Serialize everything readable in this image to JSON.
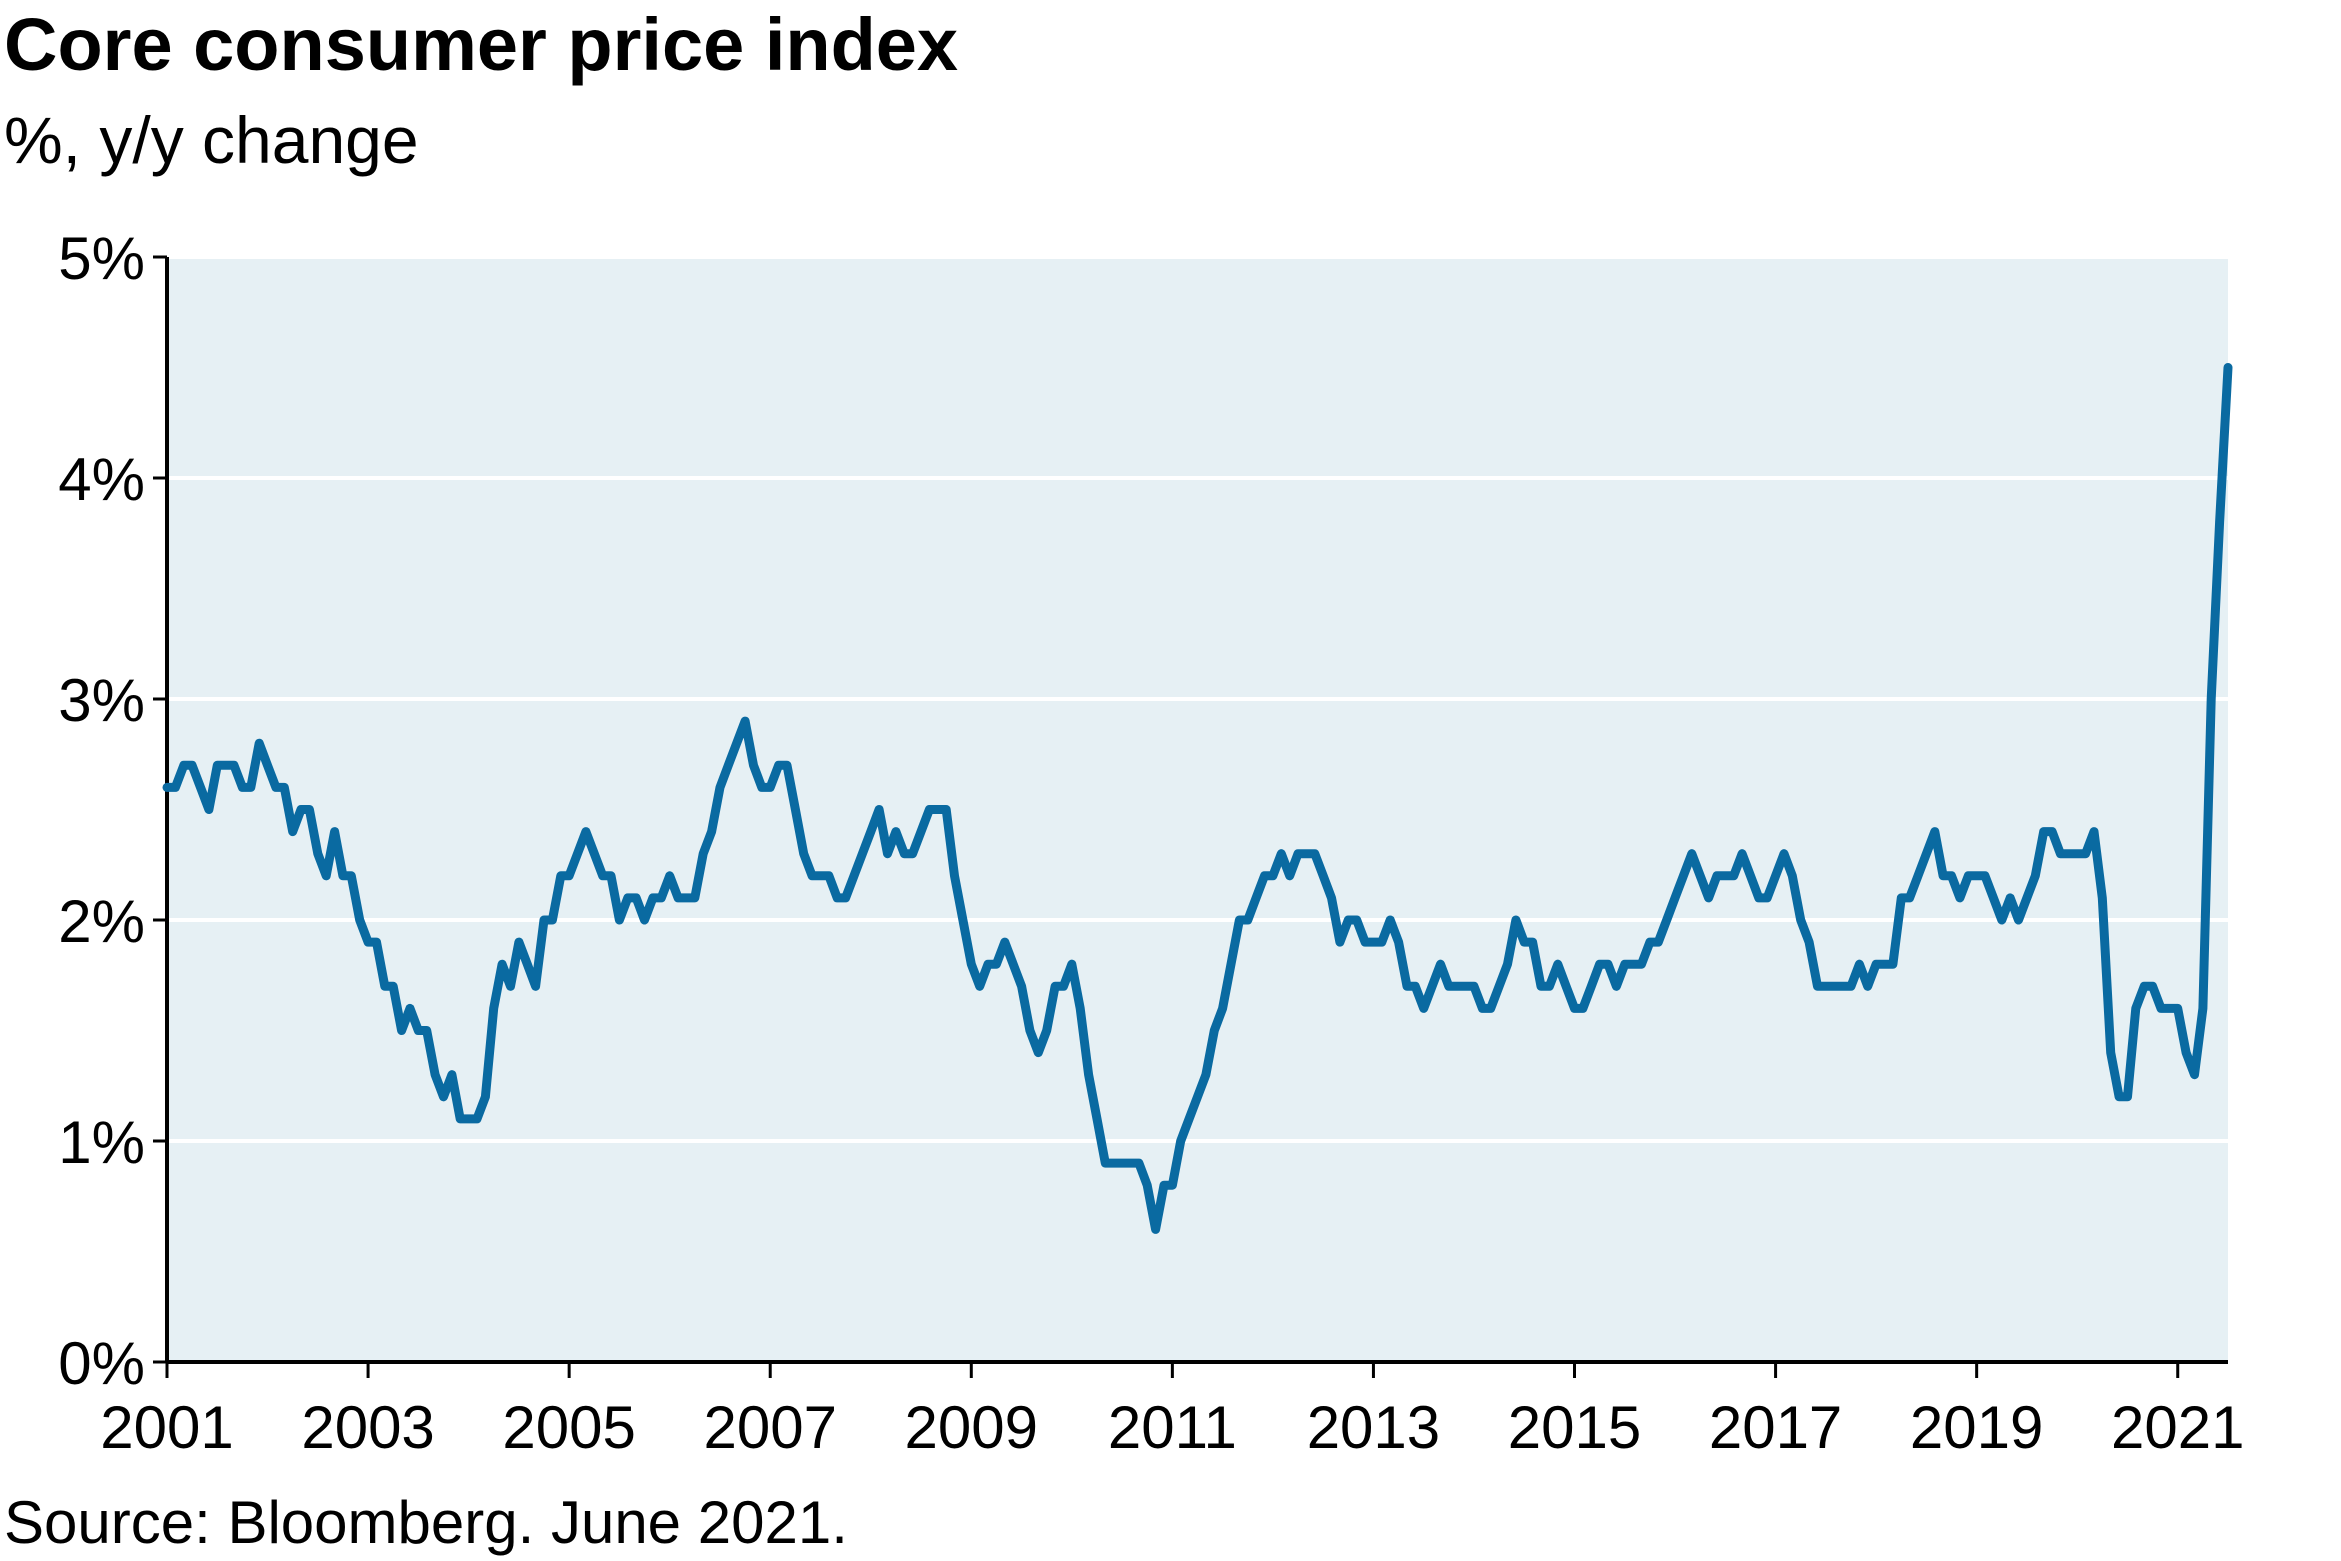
{
  "chart_data": {
    "type": "line",
    "title": "Core consumer price index",
    "subtitle": "%, y/y change",
    "source": "Source: Bloomberg. June 2021.",
    "ylim": [
      0,
      5
    ],
    "y_ticks": [
      0,
      1,
      2,
      3,
      4,
      5
    ],
    "y_tick_labels": [
      "0%",
      "1%",
      "2%",
      "3%",
      "4%",
      "5%"
    ],
    "x_ticks": [
      2001,
      2003,
      2005,
      2007,
      2009,
      2011,
      2013,
      2015,
      2017,
      2019,
      2021
    ],
    "x_tick_labels": [
      "2001",
      "2003",
      "2005",
      "2007",
      "2009",
      "2011",
      "2013",
      "2015",
      "2017",
      "2019",
      "2021"
    ],
    "xlim": [
      2001.0,
      2021.5
    ],
    "grid": "horizontal",
    "colors": {
      "line": "#0a6aa1",
      "plot_background": "#e6f0f4",
      "grid": "#ffffff",
      "axis": "#000000"
    },
    "series": [
      {
        "x_start": "2001-01",
        "frequency": "monthly",
        "values": [
          2.6,
          2.6,
          2.7,
          2.7,
          2.6,
          2.5,
          2.7,
          2.7,
          2.7,
          2.6,
          2.6,
          2.8,
          2.7,
          2.6,
          2.6,
          2.4,
          2.5,
          2.5,
          2.3,
          2.2,
          2.4,
          2.2,
          2.2,
          2.0,
          1.9,
          1.9,
          1.7,
          1.7,
          1.5,
          1.6,
          1.5,
          1.5,
          1.3,
          1.2,
          1.3,
          1.1,
          1.1,
          1.1,
          1.2,
          1.6,
          1.8,
          1.7,
          1.9,
          1.8,
          1.7,
          2.0,
          2.0,
          2.2,
          2.2,
          2.3,
          2.4,
          2.3,
          2.2,
          2.2,
          2.0,
          2.1,
          2.1,
          2.0,
          2.1,
          2.1,
          2.2,
          2.1,
          2.1,
          2.1,
          2.3,
          2.4,
          2.6,
          2.7,
          2.8,
          2.9,
          2.7,
          2.6,
          2.6,
          2.7,
          2.7,
          2.5,
          2.3,
          2.2,
          2.2,
          2.2,
          2.1,
          2.1,
          2.2,
          2.3,
          2.4,
          2.5,
          2.3,
          2.4,
          2.3,
          2.3,
          2.4,
          2.5,
          2.5,
          2.5,
          2.2,
          2.0,
          1.8,
          1.7,
          1.8,
          1.8,
          1.9,
          1.8,
          1.7,
          1.5,
          1.4,
          1.5,
          1.7,
          1.7,
          1.8,
          1.6,
          1.3,
          1.1,
          0.9,
          0.9,
          0.9,
          0.9,
          0.9,
          0.8,
          0.6,
          0.8,
          0.8,
          1.0,
          1.1,
          1.2,
          1.3,
          1.5,
          1.6,
          1.8,
          2.0,
          2.0,
          2.1,
          2.2,
          2.2,
          2.3,
          2.2,
          2.3,
          2.3,
          2.3,
          2.2,
          2.1,
          1.9,
          2.0,
          2.0,
          1.9,
          1.9,
          1.9,
          2.0,
          1.9,
          1.7,
          1.7,
          1.6,
          1.7,
          1.8,
          1.7,
          1.7,
          1.7,
          1.7,
          1.6,
          1.6,
          1.7,
          1.8,
          2.0,
          1.9,
          1.9,
          1.7,
          1.7,
          1.8,
          1.7,
          1.6,
          1.6,
          1.7,
          1.8,
          1.8,
          1.7,
          1.8,
          1.8,
          1.8,
          1.9,
          1.9,
          2.0,
          2.1,
          2.2,
          2.3,
          2.2,
          2.1,
          2.2,
          2.2,
          2.2,
          2.3,
          2.2,
          2.1,
          2.1,
          2.2,
          2.3,
          2.2,
          2.0,
          1.9,
          1.7,
          1.7,
          1.7,
          1.7,
          1.7,
          1.8,
          1.7,
          1.8,
          1.8,
          1.8,
          2.1,
          2.1,
          2.2,
          2.3,
          2.4,
          2.2,
          2.2,
          2.1,
          2.2,
          2.2,
          2.2,
          2.1,
          2.0,
          2.1,
          2.0,
          2.1,
          2.2,
          2.4,
          2.4,
          2.3,
          2.3,
          2.3,
          2.3,
          2.4,
          2.1,
          1.4,
          1.2,
          1.2,
          1.6,
          1.7,
          1.7,
          1.6,
          1.6,
          1.6,
          1.4,
          1.3,
          1.6,
          3.0,
          3.8,
          4.5
        ]
      }
    ]
  }
}
